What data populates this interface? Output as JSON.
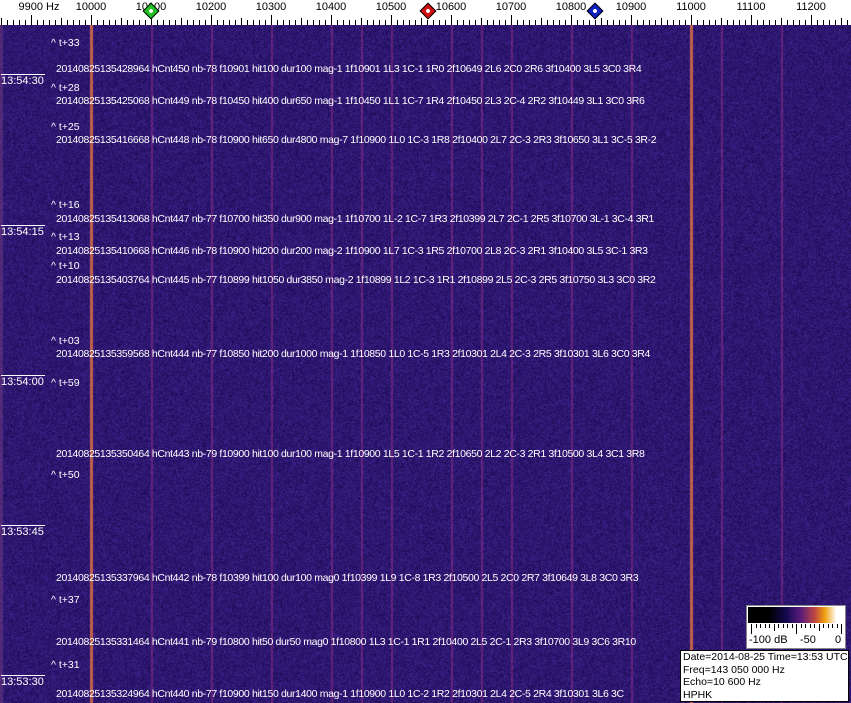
{
  "axis": {
    "unit_label": "9900 Hz",
    "labels": [
      "10000",
      "10100",
      "10200",
      "10300",
      "10400",
      "10500",
      "10600",
      "10700",
      "10800",
      "10900",
      "11000",
      "11100",
      "11200"
    ],
    "start_hz": 9900,
    "end_hz": 11290,
    "markers": [
      {
        "name": "green-marker",
        "hz": 10100,
        "color": "#22c022"
      },
      {
        "name": "red-marker",
        "hz": 10562,
        "color": "#d01010"
      },
      {
        "name": "blue-marker",
        "hz": 10840,
        "color": "#1020c0"
      }
    ]
  },
  "spectrogram": {
    "background_color": "#241a6a",
    "strong_lines_hz": [
      10000,
      11000
    ],
    "faint_lines_hz": [
      10100,
      10200,
      10300,
      10400,
      10450,
      10500,
      10600,
      10650,
      10700,
      10800,
      10900,
      11050,
      11150
    ]
  },
  "time_labels": [
    "13:54:30",
    "13:54:15",
    "13:54:00",
    "13:53:45",
    "13:53:30"
  ],
  "tags": [
    "^ t+33",
    "^ t+28",
    "^ t+25",
    "^ t+16",
    "^ t+13",
    "^ t+10",
    "^ t+03",
    "^ t+59",
    "^ t+50",
    "^ t+37",
    "^ t+31"
  ],
  "detections": [
    "20140825135428964 hCnt450 nb-78 f10901 hit100 dur100 mag-1 1f10901 1L3 1C-1 1R0 2f10649 2L6 2C0 2R6 3f10400 3L5 3C0 3R4",
    "20140825135425068 hCnt449 nb-78 f10450 hit400 dur650 mag-1 1f10450 1L1 1C-7 1R4 2f10450 2L3 2C-4 2R2 3f10449 3L1 3C0 3R6",
    "20140825135416668 hCnt448 nb-78 f10900 hit650 dur4800 mag-7 1f10900 1L0 1C-3 1R8 2f10400 2L7 2C-3 2R3 3f10650 3L1 3C-5 3R-2",
    "20140825135413068 hCnt447 nb-77 f10700 hit350 dur900 mag-1 1f10700 1L-2 1C-7 1R3 2f10399 2L7 2C-1 2R5 3f10700 3L-1 3C-4 3R1",
    "20140825135410668 hCnt446 nb-78 f10900 hit200 dur200 mag-2 1f10900 1L7 1C-3 1R5 2f10700 2L8 2C-3 2R1 3f10400 3L5 3C-1 3R3",
    "20140825135403764 hCnt445 nb-77 f10899 hit1050 dur3850 mag-2 1f10899 1L2 1C-3 1R1 2f10899 2L5 2C-3 2R5 3f10750 3L3 3C0 3R2",
    "20140825135359568 hCnt444 nb-77 f10850 hit200 dur1000 mag-1 1f10850 1L0 1C-5 1R3 2f10301 2L4 2C-3 2R5 3f10301 3L6 3C0 3R4",
    "20140825135350464 hCnt443 nb-79 f10900 hit100 dur100 mag-1 1f10900 1L5 1C-1 1R2 2f10650 2L2 2C-3 2R1 3f10500 3L4 3C1 3R8",
    "20140825135337964 hCnt442 nb-78 f10399 hit100 dur100 mag0 1f10399 1L9 1C-8 1R3 2f10500 2L5 2C0 2R7 3f10649 3L8 3C0 3R3",
    "20140825135331464 hCnt441 nb-79 f10800 hit50 dur50 mag0 1f10800 1L3 1C-1 1R1 2f10400 2L5 2C-1 2R3 3f10700 3L9 3C6 3R10",
    "20140825135324964 hCnt440 nb-77 f10900 hit150 dur1400 mag-1 1f10900 1L0 1C-2 1R2 2f10301 2L4 2C-5 2R4 3f10301 3L6 3C"
  ],
  "colorbar": {
    "labels": [
      "-100 dB",
      "-50",
      "0"
    ]
  },
  "info": {
    "date_line": "Date=2014-08-25 Time=13:53 UTC",
    "freq_line": "Freq=143 050 000 Hz",
    "echo_line": "Echo=10 600 Hz",
    "station": "HPHK"
  }
}
